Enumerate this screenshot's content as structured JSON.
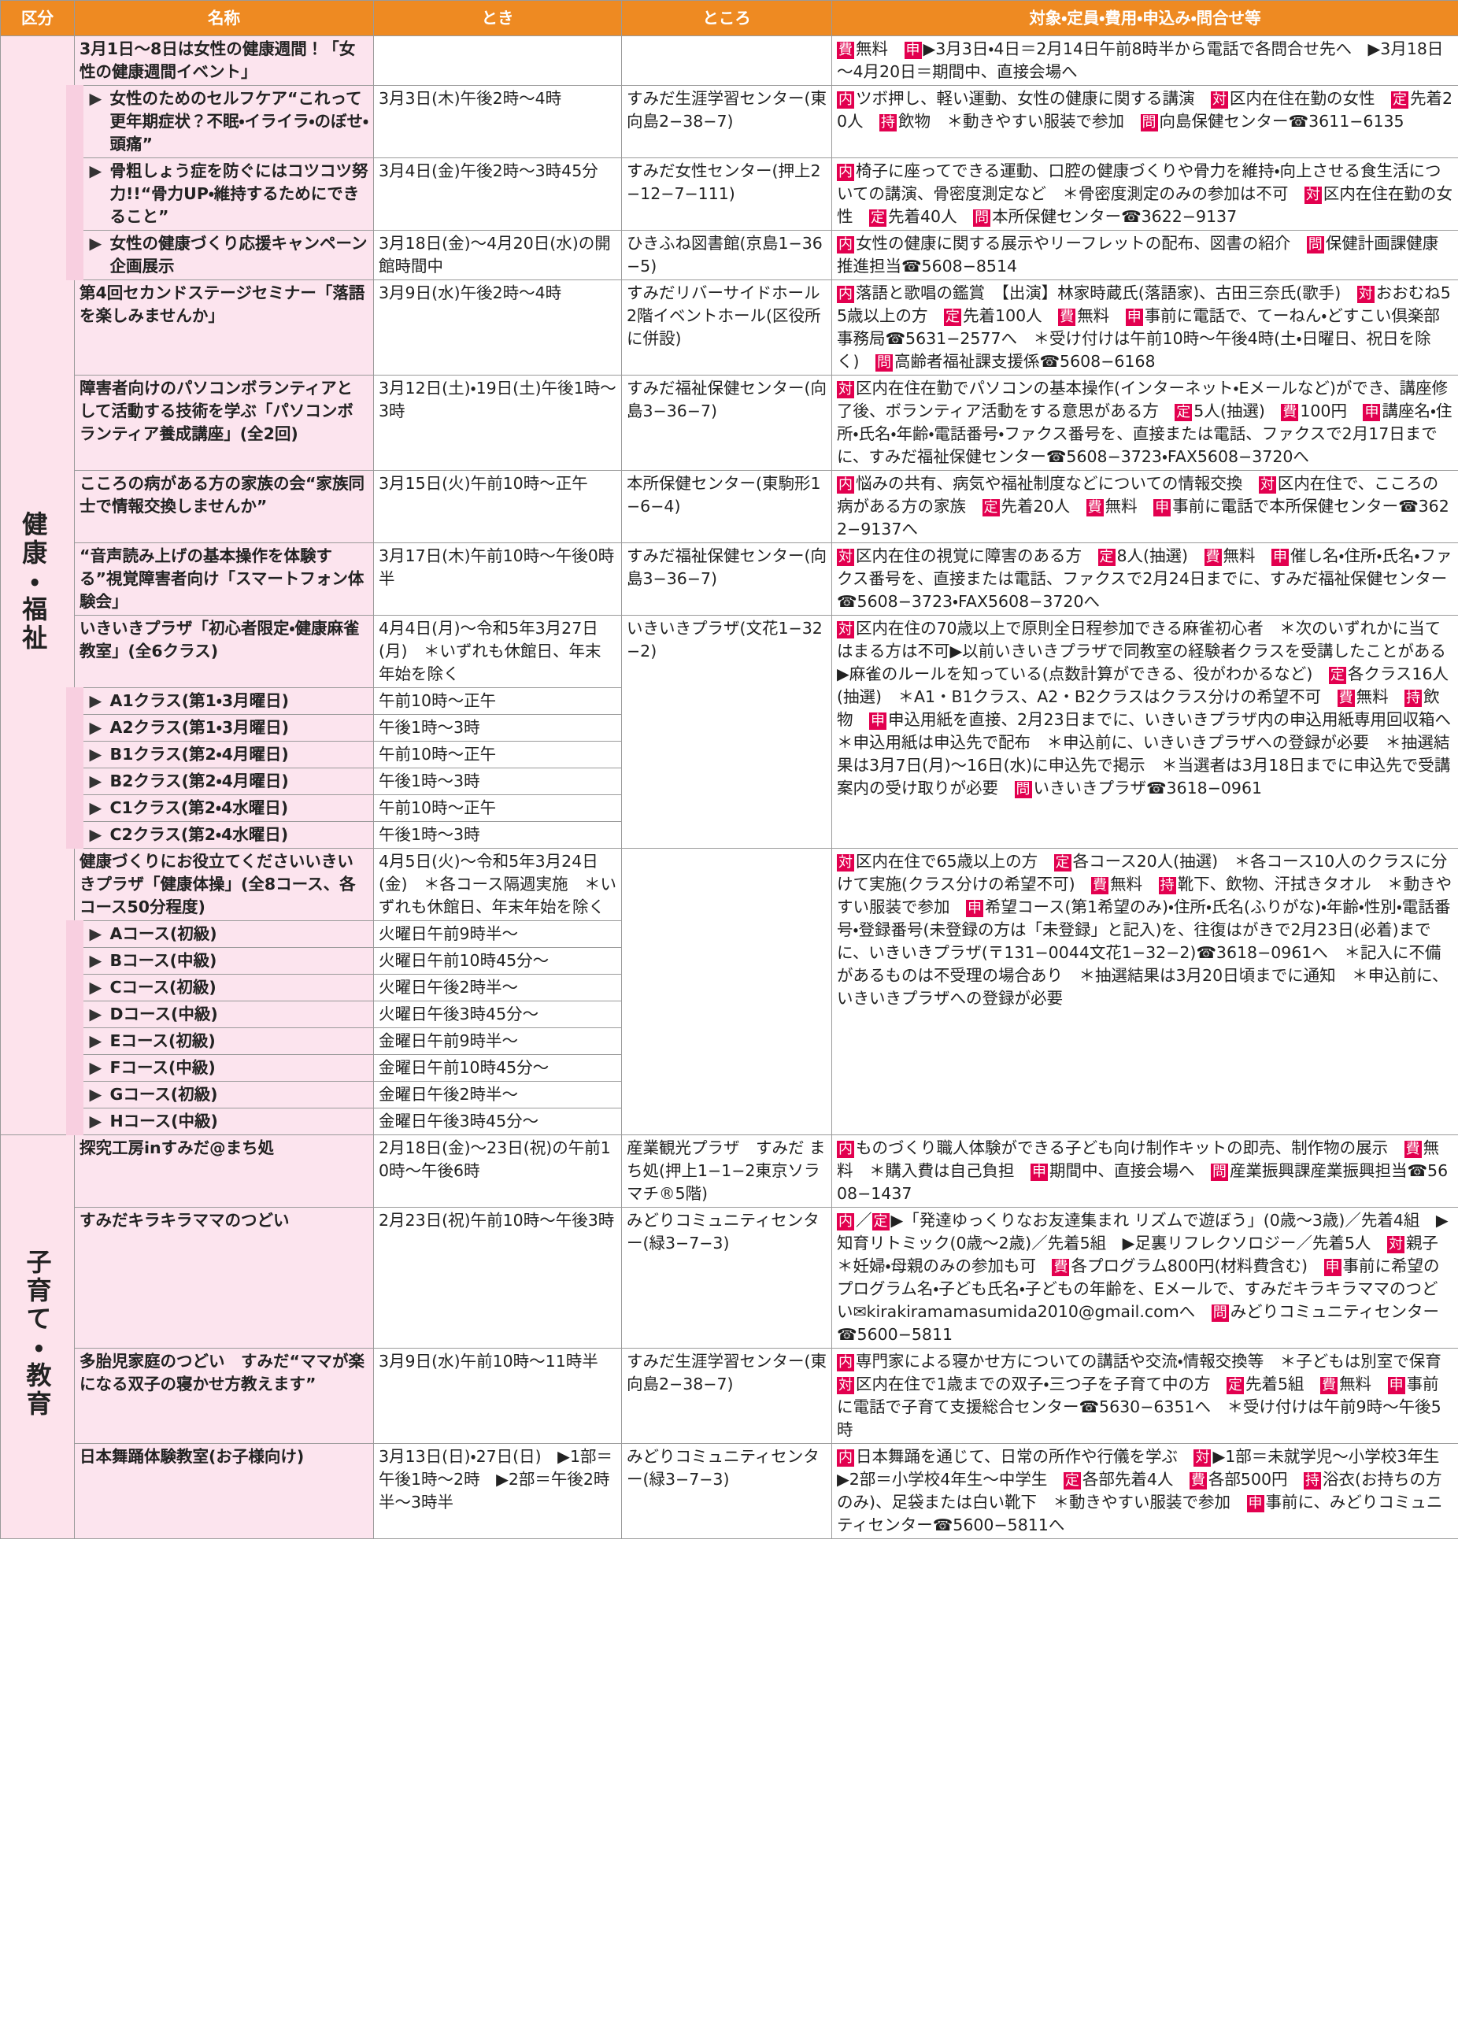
{
  "columns": [
    "区分",
    "名称",
    "とき",
    "ところ",
    "対象・定員・費用・申込み・問合せ等"
  ],
  "sections": [
    {
      "label": "健康・福祉",
      "groups": [
        {
          "name": "3月1日～8日は女性の健康週間！「女性の健康週間イベント」",
          "detail": [
            {
              "k": "費",
              "t": "無料　"
            },
            {
              "k": "申",
              "t": "▶3月3日・4日＝2月14日午前8時半から電話で各問合せ先へ　▶3月18日～4月20日＝期間中、直接会場へ"
            }
          ],
          "items": [
            {
              "name": "女性のためのセルフケア“これって更年期症状？不眠・イライラ・のぼせ・頭痛”",
              "time": "3月3日(木)午後2時～4時",
              "place": "すみだ生涯学習センター(東向島2−38−7)",
              "detail": [
                {
                  "k": "内",
                  "t": "ツボ押し、軽い運動、女性の健康に関する講演　"
                },
                {
                  "k": "対",
                  "t": "区内在住在勤の女性　"
                },
                {
                  "k": "定",
                  "t": "先着20人　"
                },
                {
                  "k": "持",
                  "t": "飲物　＊動きやすい服装で参加　"
                },
                {
                  "k": "問",
                  "t": "向島保健センター☎3611−6135"
                }
              ]
            },
            {
              "name": "骨粗しょう症を防ぐにはコツコツ努力!!“骨力UP・維持するためにできること”",
              "time": "3月4日(金)午後2時～3時45分",
              "place": "すみだ女性センター(押上2−12−7−111)",
              "detail": [
                {
                  "k": "内",
                  "t": "椅子に座ってできる運動、口腔の健康づくりや骨力を維持・向上させる食生活についての講演、骨密度測定など　＊骨密度測定のみの参加は不可　"
                },
                {
                  "k": "対",
                  "t": "区内在住在勤の女性　"
                },
                {
                  "k": "定",
                  "t": "先着40人　"
                },
                {
                  "k": "問",
                  "t": "本所保健センター☎3622−9137"
                }
              ]
            },
            {
              "name": "女性の健康づくり応援キャンペーン企画展示",
              "time": "3月18日(金)～4月20日(水)の開館時間中",
              "place": "ひきふね図書館(京島1−36−5)",
              "detail": [
                {
                  "k": "内",
                  "t": "女性の健康に関する展示やリーフレットの配布、図書の紹介　"
                },
                {
                  "k": "問",
                  "t": "保健計画課健康推進担当☎5608−8514"
                }
              ]
            }
          ]
        },
        {
          "name": "第4回セカンドステージセミナー「落語を楽しみませんか」",
          "time": "3月9日(水)午後2時～4時",
          "place": "すみだリバーサイドホール2階イベントホール(区役所に併設)",
          "detail": [
            {
              "k": "内",
              "t": "落語と歌唱の鑑賞　【出演】林家時蔵氏(落語家)、古田三奈氏(歌手)　"
            },
            {
              "k": "対",
              "t": "おおむね55歳以上の方　"
            },
            {
              "k": "定",
              "t": "先着100人　"
            },
            {
              "k": "費",
              "t": "無料　"
            },
            {
              "k": "申",
              "t": "事前に電話で、てーねん・どすこい倶楽部事務局☎5631−2577へ　＊受け付けは午前10時～午後4時(土・日曜日、祝日を除く)　"
            },
            {
              "k": "問",
              "t": "高齢者福祉課支援係☎5608−6168"
            }
          ]
        },
        {
          "name": "障害者向けのパソコンボランティアとして活動する技術を学ぶ「パソコンボランティア養成講座」(全2回)",
          "time": "3月12日(土)・19日(土)午後1時～3時",
          "place": "すみだ福祉保健センター(向島3−36−7)",
          "detail": [
            {
              "k": "対",
              "t": "区内在住在勤でパソコンの基本操作(インターネット・Eメールなど)ができ、講座修了後、ボランティア活動をする意思がある方　"
            },
            {
              "k": "定",
              "t": "5人(抽選)　"
            },
            {
              "k": "費",
              "t": "100円　"
            },
            {
              "k": "申",
              "t": "講座名・住所・氏名・年齢・電話番号・ファクス番号を、直接または電話、ファクスで2月17日までに、すみだ福祉保健センター☎5608−3723・FAX5608−3720へ"
            }
          ]
        },
        {
          "name": "こころの病がある方の家族の会“家族同士で情報交換しませんか”",
          "time": "3月15日(火)午前10時～正午",
          "place": "本所保健センター(東駒形1−6−4)",
          "detail": [
            {
              "k": "内",
              "t": "悩みの共有、病気や福祉制度などについての情報交換　"
            },
            {
              "k": "対",
              "t": "区内在住で、こころの病がある方の家族　"
            },
            {
              "k": "定",
              "t": "先着20人　"
            },
            {
              "k": "費",
              "t": "無料　"
            },
            {
              "k": "申",
              "t": "事前に電話で本所保健センター☎3622−9137へ"
            }
          ]
        },
        {
          "name": "“音声読み上げの基本操作を体験する”視覚障害者向け「スマートフォン体験会」",
          "time": "3月17日(木)午前10時～午後0時半",
          "place": "すみだ福祉保健センター(向島3−36−7)",
          "detail": [
            {
              "k": "対",
              "t": "区内在住の視覚に障害のある方　"
            },
            {
              "k": "定",
              "t": "8人(抽選)　"
            },
            {
              "k": "費",
              "t": "無料　"
            },
            {
              "k": "申",
              "t": "催し名・住所・氏名・ファクス番号を、直接または電話、ファクスで2月24日までに、すみだ福祉保健センター☎5608−3723・FAX5608−3720へ"
            }
          ]
        },
        {
          "name": "いきいきプラザ「初心者限定・健康麻雀教室」(全6クラス)",
          "time": "4月4日(月)～令和5年3月27日(月)　＊いずれも休館日、年末年始を除く",
          "place": "いきいきプラザ(文花1−32−2)",
          "detail": [
            {
              "k": "対",
              "t": "区内在住の70歳以上で原則全日程参加できる麻雀初心者　＊次のいずれかに当てはまる方は不可▶以前いきいきプラザで同教室の経験者クラスを受講したことがある　▶麻雀のルールを知っている(点数計算ができる、役がわかるなど)　"
            },
            {
              "k": "定",
              "t": "各クラス16人(抽選)　＊A1・B1クラス、A2・B2クラスはクラス分けの希望不可　"
            },
            {
              "k": "費",
              "t": "無料　"
            },
            {
              "k": "持",
              "t": "飲物　"
            },
            {
              "k": "申",
              "t": "申込用紙を直接、2月23日までに、いきいきプラザ内の申込用紙専用回収箱へ　＊申込用紙は申込先で配布　＊申込前に、いきいきプラザへの登録が必要　＊抽選結果は3月7日(月)～16日(水)に申込先で掲示　＊当選者は3月18日までに申込先で受講案内の受け取りが必要　"
            },
            {
              "k": "問",
              "t": "いきいきプラザ☎3618−0961"
            }
          ],
          "items": [
            {
              "name": "A1クラス(第1・3月曜日)",
              "time": "午前10時～正午"
            },
            {
              "name": "A2クラス(第1・3月曜日)",
              "time": "午後1時～3時"
            },
            {
              "name": "B1クラス(第2・4月曜日)",
              "time": "午前10時～正午"
            },
            {
              "name": "B2クラス(第2・4月曜日)",
              "time": "午後1時～3時"
            },
            {
              "name": "C1クラス(第2・4水曜日)",
              "time": "午前10時～正午"
            },
            {
              "name": "C2クラス(第2・4水曜日)",
              "time": "午後1時～3時"
            }
          ]
        },
        {
          "name": "健康づくりにお役立てくださいいきいきプラザ「健康体操」(全8コース、各コース50分程度)",
          "time": "4月5日(火)～令和5年3月24日(金)　＊各コース隔週実施　＊いずれも休館日、年末年始を除く",
          "detail": [
            {
              "k": "対",
              "t": "区内在住で65歳以上の方　"
            },
            {
              "k": "定",
              "t": "各コース20人(抽選)　＊各コース10人のクラスに分けて実施(クラス分けの希望不可)　"
            },
            {
              "k": "費",
              "t": "無料　"
            },
            {
              "k": "持",
              "t": "靴下、飲物、汗拭きタオル　＊動きやすい服装で参加　"
            },
            {
              "k": "申",
              "t": "希望コース(第1希望のみ)・住所・氏名(ふりがな)・年齢・性別・電話番号・登録番号(未登録の方は「未登録」と記入)を、往復はがきで2月23日(必着)までに、いきいきプラザ(〒131−0044文花1−32−2)☎3618−0961へ　＊記入に不備があるものは不受理の場合あり　＊抽選結果は3月20日頃までに通知　＊申込前に、いきいきプラザへの登録が必要"
            }
          ],
          "items": [
            {
              "name": "Aコース(初級)",
              "time": "火曜日午前9時半～"
            },
            {
              "name": "Bコース(中級)",
              "time": "火曜日午前10時45分～"
            },
            {
              "name": "Cコース(初級)",
              "time": "火曜日午後2時半～"
            },
            {
              "name": "Dコース(中級)",
              "time": "火曜日午後3時45分～"
            },
            {
              "name": "Eコース(初級)",
              "time": "金曜日午前9時半～"
            },
            {
              "name": "Fコース(中級)",
              "time": "金曜日午前10時45分～"
            },
            {
              "name": "Gコース(初級)",
              "time": "金曜日午後2時半～"
            },
            {
              "name": "Hコース(中級)",
              "time": "金曜日午後3時45分～"
            }
          ]
        }
      ]
    },
    {
      "label": "子育て・教育",
      "groups": [
        {
          "name": "探究工房inすみだ@まち処",
          "time": "2月18日(金)～23日(祝)の午前10時～午後6時",
          "place": "産業観光プラザ　すみだ まち処(押上1−1−2東京ソラマチ®5階)",
          "detail": [
            {
              "k": "内",
              "t": "ものづくり職人体験ができる子ども向け制作キットの即売、制作物の展示　"
            },
            {
              "k": "費",
              "t": "無料　＊購入費は自己負担　"
            },
            {
              "k": "申",
              "t": "期間中、直接会場へ　"
            },
            {
              "k": "問",
              "t": "産業振興課産業振興担当☎5608−1437"
            }
          ]
        },
        {
          "name": "すみだキラキラママのつどい",
          "time": "2月23日(祝)午前10時～午後3時",
          "place": "みどりコミュニティセンター(緑3−7−3)",
          "detail": [
            {
              "k": "内",
              "t": "／"
            },
            {
              "k": "定",
              "t": "▶「発達ゆっくりなお友達集まれ リズムで遊ぼう」(0歳～3歳)／先着4組　▶知育リトミック(0歳～2歳)／先着5組　▶足裏リフレクソロジー／先着5人　"
            },
            {
              "k": "対",
              "t": "親子　＊妊婦・母親のみの参加も可　"
            },
            {
              "k": "費",
              "t": "各プログラム800円(材料費含む)　"
            },
            {
              "k": "申",
              "t": "事前に希望のプログラム名・子ども氏名・子どもの年齢を、Eメールで、すみだキラキラママのつどい✉kirakiramamasumida2010@gmail.comへ　"
            },
            {
              "k": "問",
              "t": "みどりコミュニティセンター☎5600−5811"
            }
          ]
        },
        {
          "name": "多胎児家庭のつどい　すみだ“ママが楽になる双子の寝かせ方教えます”",
          "time": "3月9日(水)午前10時～11時半",
          "place": "すみだ生涯学習センター(東向島2−38−7)",
          "detail": [
            {
              "k": "内",
              "t": "専門家による寝かせ方についての講話や交流・情報交換等　＊子どもは別室で保育　"
            },
            {
              "k": "対",
              "t": "区内在住で1歳までの双子・三つ子を子育て中の方　"
            },
            {
              "k": "定",
              "t": "先着5組　"
            },
            {
              "k": "費",
              "t": "無料　"
            },
            {
              "k": "申",
              "t": "事前に電話で子育て支援総合センター☎5630−6351へ　＊受け付けは午前9時～午後5時"
            }
          ]
        },
        {
          "name": "日本舞踊体験教室(お子様向け)",
          "time": "3月13日(日)・27日(日)　▶1部＝午後1時～2時　▶2部＝午後2時半～3時半",
          "place": "みどりコミュニティセンター(緑3−7−3)",
          "detail": [
            {
              "k": "内",
              "t": "日本舞踊を通じて、日常の所作や行儀を学ぶ　"
            },
            {
              "k": "対",
              "t": "▶1部＝未就学児～小学校3年生　▶2部＝小学校4年生～中学生　"
            },
            {
              "k": "定",
              "t": "各部先着4人　"
            },
            {
              "k": "費",
              "t": "各部500円　"
            },
            {
              "k": "持",
              "t": "浴衣(お持ちの方のみ)、足袋または白い靴下　＊動きやすい服装で参加　"
            },
            {
              "k": "申",
              "t": "事前に、みどりコミュニティセンター☎5600−5811へ"
            }
          ]
        }
      ]
    }
  ]
}
